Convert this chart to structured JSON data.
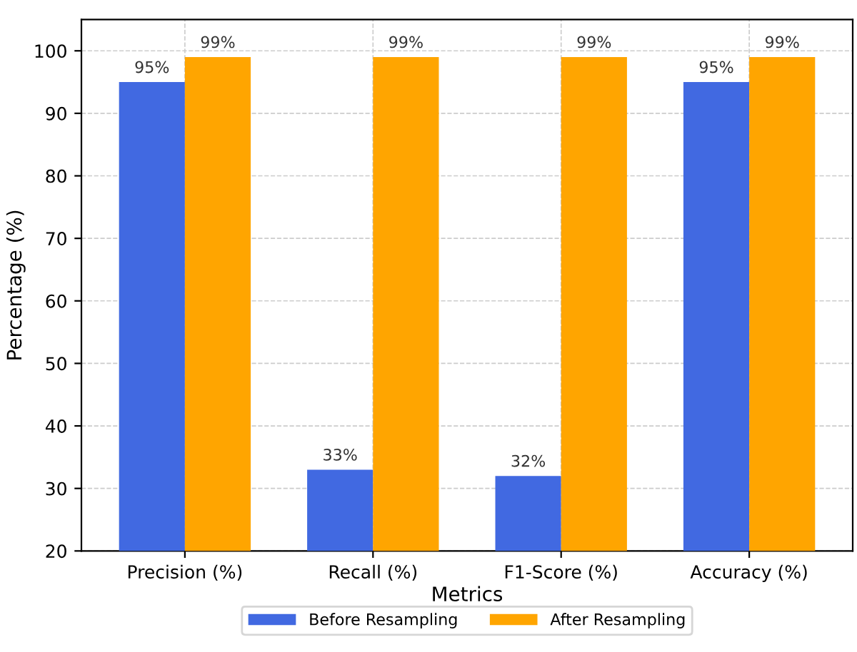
{
  "chart_data": {
    "type": "bar",
    "xlabel": "Metrics",
    "ylabel": "Percentage (%)",
    "categories": [
      "Precision (%)",
      "Recall (%)",
      "F1-Score (%)",
      "Accuracy (%)"
    ],
    "series": [
      {
        "name": "Before Resampling",
        "color": "#4169e1",
        "values": [
          95,
          33,
          32,
          95
        ],
        "value_labels": [
          "95%",
          "33%",
          "32%",
          "95%"
        ]
      },
      {
        "name": "After Resampling",
        "color": "#ffa500",
        "values": [
          99,
          99,
          99,
          99
        ],
        "value_labels": [
          "99%",
          "99%",
          "99%",
          "99%"
        ]
      }
    ],
    "ylim": [
      20,
      105
    ],
    "yticks": [
      20,
      30,
      40,
      50,
      60,
      70,
      80,
      90,
      100
    ],
    "grid": true,
    "legend": "bottom"
  }
}
